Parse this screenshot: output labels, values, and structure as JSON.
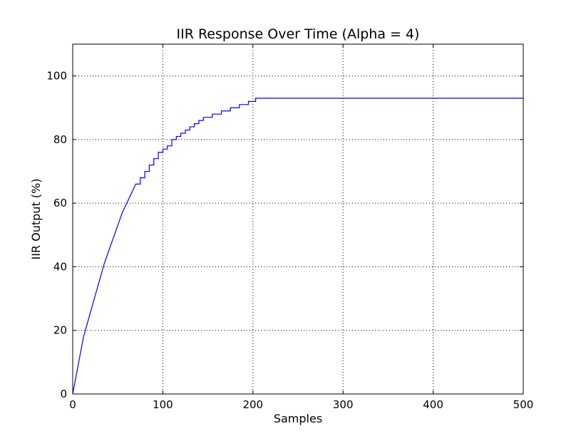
{
  "chart_data": {
    "type": "line",
    "title": "IIR Response Over Time (Alpha = 4)",
    "xlabel": "Samples",
    "ylabel": "IIR Output (%)",
    "xlim": [
      0,
      500
    ],
    "ylim": [
      0,
      110
    ],
    "xticks": [
      0,
      100,
      200,
      300,
      400,
      500
    ],
    "yticks": [
      0,
      20,
      40,
      60,
      80,
      100
    ],
    "xtick_labels": [
      "0",
      "100",
      "200",
      "300",
      "400",
      "500"
    ],
    "ytick_labels": [
      "0",
      "20",
      "40",
      "60",
      "80",
      "100"
    ],
    "grid": true,
    "line_color": "#0000ff",
    "series": [
      {
        "x": [
          0,
          4,
          8,
          12,
          16,
          20,
          25,
          30,
          35,
          40,
          45,
          50,
          55,
          60,
          65,
          70,
          75,
          80,
          85,
          90,
          95,
          100,
          105,
          110,
          115,
          120,
          125,
          130,
          135,
          140,
          145,
          150,
          155,
          160,
          165,
          170,
          175,
          180,
          185,
          190,
          195,
          200,
          203,
          205,
          250,
          300,
          350,
          400,
          450,
          500
        ],
        "y": [
          0,
          6,
          12,
          18,
          22,
          26,
          31,
          36,
          41,
          45,
          49,
          53,
          57,
          60,
          63,
          66,
          68,
          70,
          72,
          74,
          76,
          77,
          78,
          80,
          81,
          82,
          83,
          84,
          85,
          86,
          87,
          87,
          88,
          88,
          89,
          89,
          90,
          90,
          91,
          91,
          92,
          92,
          93,
          93,
          93,
          93,
          93,
          93,
          93,
          93
        ]
      }
    ]
  }
}
